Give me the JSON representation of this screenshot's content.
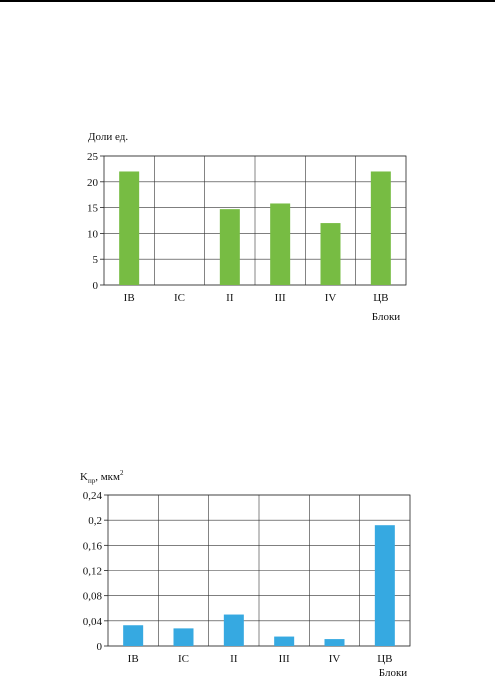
{
  "chart_data": [
    {
      "type": "bar",
      "title": "",
      "ylabel": "Доли ед.",
      "xlabel": "Блоки",
      "categories": [
        "IB",
        "IC",
        "II",
        "III",
        "IV",
        "ЦВ"
      ],
      "values": [
        22,
        0,
        14.7,
        15.8,
        12,
        22
      ],
      "ylim": [
        0,
        25
      ],
      "yticks": [
        "0",
        "5",
        "10",
        "15",
        "20",
        "25"
      ],
      "ytick_values": [
        0,
        5,
        10,
        15,
        20,
        25
      ],
      "bar_color": "#77bc43",
      "grid": true
    },
    {
      "type": "bar",
      "title": "",
      "ylabel_main": "K",
      "ylabel_sub": "пр",
      "ylabel_unit": ", мкм",
      "ylabel_sup": "2",
      "xlabel": "Блоки",
      "categories": [
        "IB",
        "IC",
        "II",
        "III",
        "IV",
        "ЦВ"
      ],
      "values": [
        0.033,
        0.028,
        0.05,
        0.015,
        0.011,
        0.192
      ],
      "ylim": [
        0,
        0.24
      ],
      "yticks": [
        "0",
        "0,04",
        "0,08",
        "0,12",
        "0,16",
        "0,2",
        "0,24"
      ],
      "ytick_values": [
        0,
        0.04,
        0.08,
        0.12,
        0.16,
        0.2,
        0.24
      ],
      "bar_color": "#36a9e1",
      "grid": true
    }
  ]
}
